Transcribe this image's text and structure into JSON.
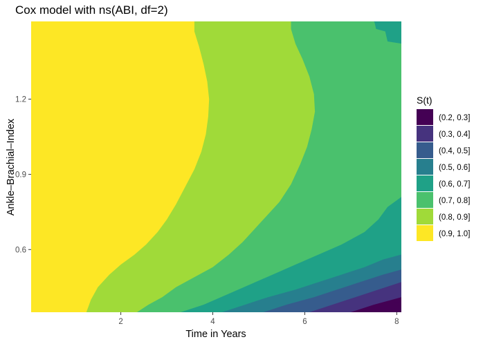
{
  "chart_data": {
    "type": "contour",
    "title": "Cox model with ns(ABI, df=2)",
    "xlabel": "Time in Years",
    "ylabel": "Ankle–Brachial–Index",
    "xlim": [
      0.05,
      8.1
    ],
    "ylim": [
      0.35,
      1.51
    ],
    "x_ticks": [
      2,
      4,
      6,
      8
    ],
    "y_ticks": [
      0.6,
      0.9,
      1.2
    ],
    "grid": false,
    "legend": {
      "title": "S(t)",
      "position": "right",
      "entries": [
        {
          "label": "(0.2, 0.3]",
          "color": "#440154"
        },
        {
          "label": "(0.3, 0.4]",
          "color": "#46337E"
        },
        {
          "label": "(0.4, 0.5]",
          "color": "#365C8D"
        },
        {
          "label": "(0.5, 0.6]",
          "color": "#277F8E"
        },
        {
          "label": "(0.6, 0.7]",
          "color": "#1FA187"
        },
        {
          "label": "(0.7, 0.8]",
          "color": "#4AC16D"
        },
        {
          "label": "(0.8, 0.9]",
          "color": "#A0DA39"
        },
        {
          "label": "(0.9, 1.0]",
          "color": "#FDE725"
        }
      ]
    },
    "levels": [
      {
        "band": "(0.9, 1.0]",
        "boundary": [
          [
            1.25,
            0.35
          ],
          [
            1.35,
            0.4
          ],
          [
            1.5,
            0.45
          ],
          [
            1.75,
            0.5
          ],
          [
            2.0,
            0.54
          ],
          [
            2.3,
            0.58
          ],
          [
            2.55,
            0.62
          ],
          [
            2.8,
            0.67
          ],
          [
            3.0,
            0.72
          ],
          [
            3.2,
            0.78
          ],
          [
            3.4,
            0.85
          ],
          [
            3.6,
            0.92
          ],
          [
            3.75,
            0.99
          ],
          [
            3.85,
            1.06
          ],
          [
            3.9,
            1.13
          ],
          [
            3.92,
            1.2
          ],
          [
            3.88,
            1.27
          ],
          [
            3.8,
            1.34
          ],
          [
            3.7,
            1.41
          ],
          [
            3.6,
            1.47
          ],
          [
            3.6,
            1.51
          ]
        ]
      },
      {
        "band": "(0.8, 0.9]",
        "boundary": [
          [
            2.35,
            0.35
          ],
          [
            2.6,
            0.38
          ],
          [
            2.9,
            0.41
          ],
          [
            3.2,
            0.45
          ],
          [
            3.6,
            0.49
          ],
          [
            4.0,
            0.53
          ],
          [
            4.35,
            0.58
          ],
          [
            4.65,
            0.63
          ],
          [
            4.9,
            0.68
          ],
          [
            5.15,
            0.73
          ],
          [
            5.45,
            0.79
          ],
          [
            5.7,
            0.86
          ],
          [
            5.9,
            0.94
          ],
          [
            6.05,
            1.01
          ],
          [
            6.15,
            1.08
          ],
          [
            6.22,
            1.15
          ],
          [
            6.2,
            1.22
          ],
          [
            6.1,
            1.29
          ],
          [
            5.95,
            1.36
          ],
          [
            5.8,
            1.42
          ],
          [
            5.7,
            1.48
          ],
          [
            5.7,
            1.51
          ]
        ]
      },
      {
        "band": "(0.7, 0.8]",
        "boundary": [
          [
            3.3,
            0.35
          ],
          [
            3.8,
            0.38
          ],
          [
            4.3,
            0.42
          ],
          [
            4.8,
            0.46
          ],
          [
            5.3,
            0.5
          ],
          [
            5.8,
            0.54
          ],
          [
            6.3,
            0.58
          ],
          [
            6.8,
            0.62
          ],
          [
            7.3,
            0.67
          ],
          [
            7.6,
            0.72
          ],
          [
            7.8,
            0.77
          ],
          [
            8.1,
            0.81
          ],
          [
            8.1,
            1.43
          ],
          [
            7.9,
            1.46
          ],
          [
            7.6,
            1.49
          ],
          [
            7.5,
            1.51
          ]
        ]
      },
      {
        "band": "(0.6, 0.7]",
        "boundary": [
          [
            4.2,
            0.35
          ],
          [
            4.7,
            0.38
          ],
          [
            5.2,
            0.41
          ],
          [
            5.8,
            0.44
          ],
          [
            6.3,
            0.47
          ],
          [
            6.8,
            0.5
          ],
          [
            7.3,
            0.53
          ],
          [
            7.7,
            0.56
          ],
          [
            8.1,
            0.58
          ]
        ]
      },
      {
        "band": "(0.5, 0.6]",
        "boundary": [
          [
            5.1,
            0.35
          ],
          [
            5.6,
            0.38
          ],
          [
            6.2,
            0.41
          ],
          [
            6.7,
            0.44
          ],
          [
            7.2,
            0.47
          ],
          [
            7.7,
            0.5
          ],
          [
            8.1,
            0.52
          ]
        ]
      },
      {
        "band": "(0.4, 0.5]",
        "boundary": [
          [
            6.1,
            0.35
          ],
          [
            6.6,
            0.38
          ],
          [
            7.1,
            0.41
          ],
          [
            7.6,
            0.44
          ],
          [
            8.1,
            0.47
          ]
        ]
      },
      {
        "band": "(0.3, 0.4]",
        "boundary": [
          [
            7.0,
            0.35
          ],
          [
            7.5,
            0.38
          ],
          [
            8.1,
            0.41
          ]
        ]
      }
    ]
  }
}
